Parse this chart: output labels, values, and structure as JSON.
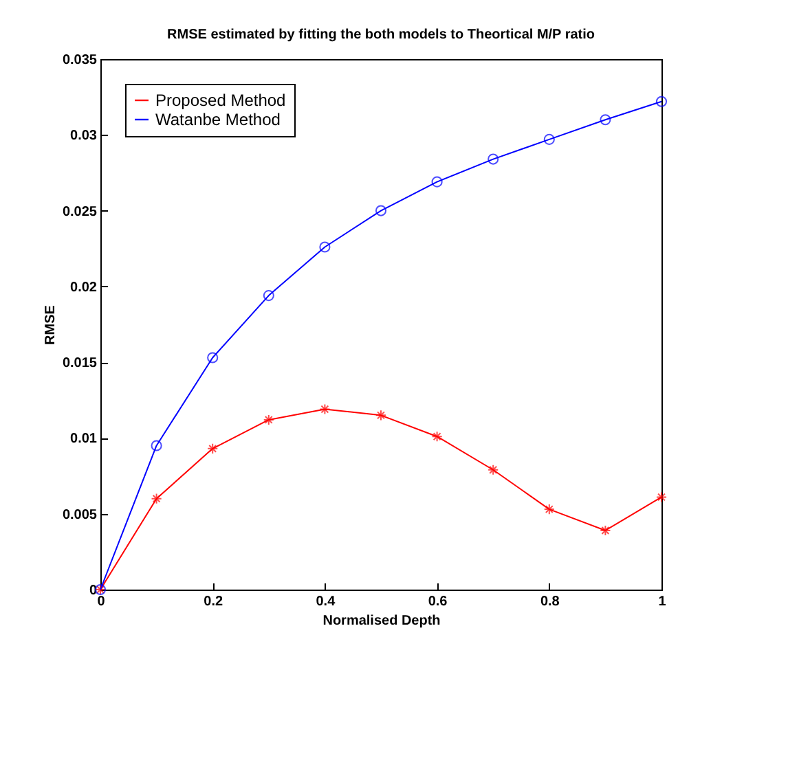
{
  "chart_data": {
    "type": "line",
    "title": "RMSE estimated by fitting the both models to Theortical M/P ratio",
    "xlabel": "Normalised Depth",
    "ylabel": "RMSE",
    "x": [
      0,
      0.1,
      0.2,
      0.3,
      0.4,
      0.5,
      0.6,
      0.7,
      0.8,
      0.9,
      1.0
    ],
    "series": [
      {
        "name": "Proposed Method",
        "color": "#ff0000",
        "marker": "cross",
        "values": [
          0,
          0.006,
          0.0093,
          0.0112,
          0.0119,
          0.0115,
          0.0101,
          0.0079,
          0.0053,
          0.0039,
          0.0061
        ]
      },
      {
        "name": "Watanbe Method",
        "color": "#0000ff",
        "marker": "circle",
        "values": [
          0,
          0.0095,
          0.0153,
          0.0194,
          0.0226,
          0.025,
          0.0269,
          0.0284,
          0.0297,
          0.031,
          0.0322
        ]
      }
    ],
    "xlim": [
      0,
      1
    ],
    "xticks": [
      0,
      0.2,
      0.4,
      0.6,
      0.8,
      1
    ],
    "ylim": [
      0,
      0.035
    ],
    "yticks": [
      0,
      0.005,
      0.01,
      0.015,
      0.02,
      0.025,
      0.03,
      0.035
    ],
    "legend": "top left",
    "grid": false,
    "line_style": "solid"
  }
}
